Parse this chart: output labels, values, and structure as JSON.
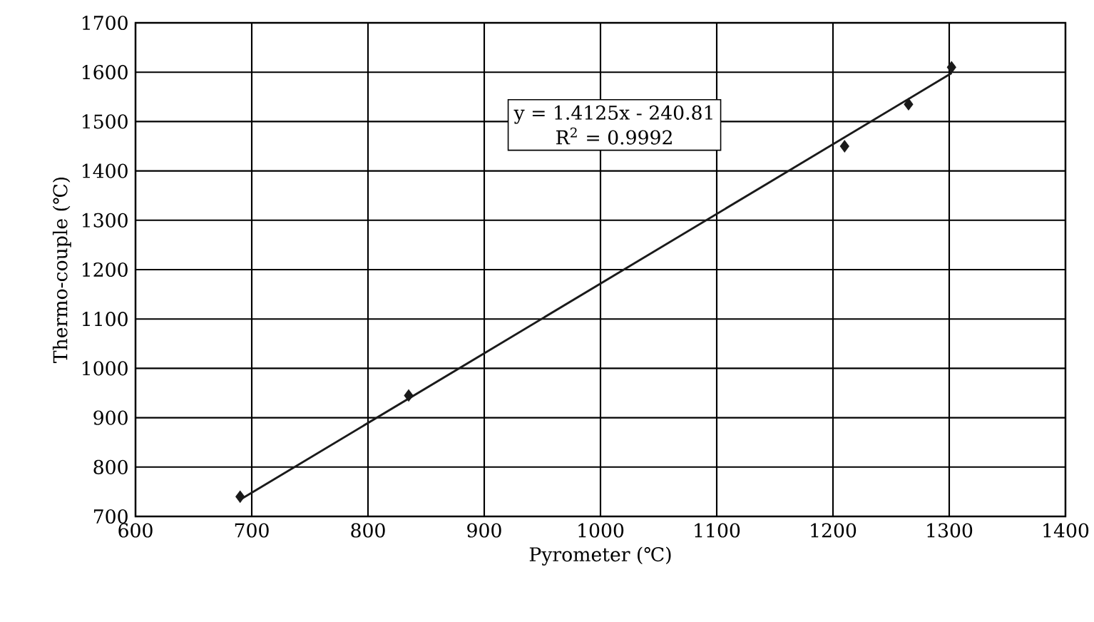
{
  "chart_data": {
    "type": "scatter",
    "xlabel": "Pyrometer (℃)",
    "ylabel": "Thermo-couple (℃)",
    "xlim": [
      600,
      1400
    ],
    "xticks": [
      600,
      700,
      800,
      900,
      1000,
      1100,
      1200,
      1300,
      1400
    ],
    "ylim": [
      700,
      1700
    ],
    "yticks": [
      700,
      800,
      900,
      1000,
      1100,
      1200,
      1300,
      1400,
      1500,
      1600,
      1700
    ],
    "grid": true,
    "series": [
      {
        "type": "scatter",
        "color": "#1a1a1a",
        "marker": "diamond",
        "x": [
          690,
          835,
          1210,
          1265,
          1302
        ],
        "values": [
          740,
          945,
          1450,
          1535,
          1610
        ]
      },
      {
        "type": "line",
        "color": "#1a1a1a",
        "marker": "none",
        "line_style": "solid",
        "x": [
          690,
          1302
        ],
        "values": [
          734,
          1598
        ]
      }
    ],
    "annotations": [
      "y = 1.4125x - 240.81",
      "R$^{2}$ = 0.9992"
    ]
  }
}
